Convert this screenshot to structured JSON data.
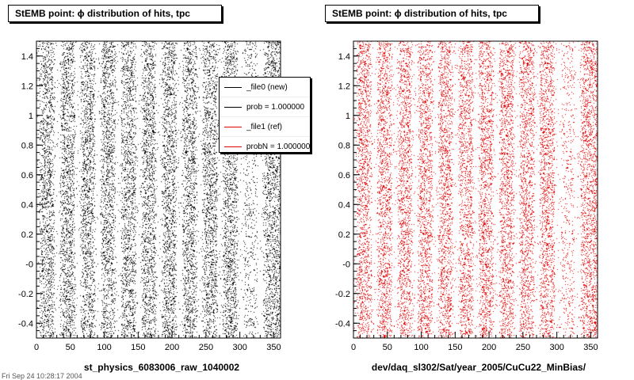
{
  "colors": {
    "primary": "#000000",
    "reference": "#e00000",
    "frame": "#000000",
    "background": "#ffffff"
  },
  "chart_data": [
    {
      "type": "scatter",
      "title": "StEMB point:  ϕ distribution of hits, tpc",
      "xlabel": "st_physics_6083006_raw_1040002",
      "ylabel": "",
      "xlim": [
        0,
        360
      ],
      "ylim": [
        -0.5,
        1.5
      ],
      "x_ticks": [
        "0",
        "50",
        "100",
        "150",
        "200",
        "250",
        "300",
        "350"
      ],
      "y_ticks": [
        "-0.4",
        "-0.2",
        "-0",
        "0.2",
        "0.4",
        "0.6",
        "0.8",
        "1",
        "1.2",
        "1.4"
      ],
      "point_color": "#000000",
      "gap_centers_deg": [
        1,
        31,
        61,
        91,
        121,
        151,
        181,
        211,
        241,
        271,
        301,
        331
      ],
      "dense_bands_deg": [
        [
          160,
          175
        ],
        [
          250,
          290
        ]
      ],
      "sparse_band_deg": [
        305,
        330
      ],
      "legend": {
        "entries": [
          {
            "label": "_file0 (new)",
            "color": "#000000"
          },
          {
            "label": "prob = 1.000000",
            "color": "#000000"
          },
          {
            "label": "_file1 (ref)",
            "color": "#e00000"
          },
          {
            "label": "probN = 1.000000",
            "color": "#e00000"
          }
        ]
      }
    },
    {
      "type": "scatter",
      "title": "StEMB point:  ϕ distribution of hits, tpc",
      "xlabel": "dev/daq_sl302/Sat/year_2005/CuCu22_MinBias/",
      "ylabel": "",
      "xlim": [
        0,
        360
      ],
      "ylim": [
        -0.5,
        1.5
      ],
      "x_ticks": [
        "0",
        "50",
        "100",
        "150",
        "200",
        "250",
        "300",
        "350"
      ],
      "y_ticks": [
        "-0.4",
        "-0.2",
        "-0",
        "0.2",
        "0.4",
        "0.6",
        "0.8",
        "1",
        "1.2",
        "1.4"
      ],
      "point_color": "#e00000",
      "gap_centers_deg": [
        1,
        31,
        61,
        91,
        121,
        151,
        181,
        211,
        241,
        271,
        301,
        331
      ],
      "dense_bands_deg": [
        [
          160,
          175
        ],
        [
          250,
          290
        ]
      ],
      "sparse_band_deg": [
        305,
        330
      ]
    }
  ],
  "footer_text": "Fri Sep 24 10:28:17 2004"
}
